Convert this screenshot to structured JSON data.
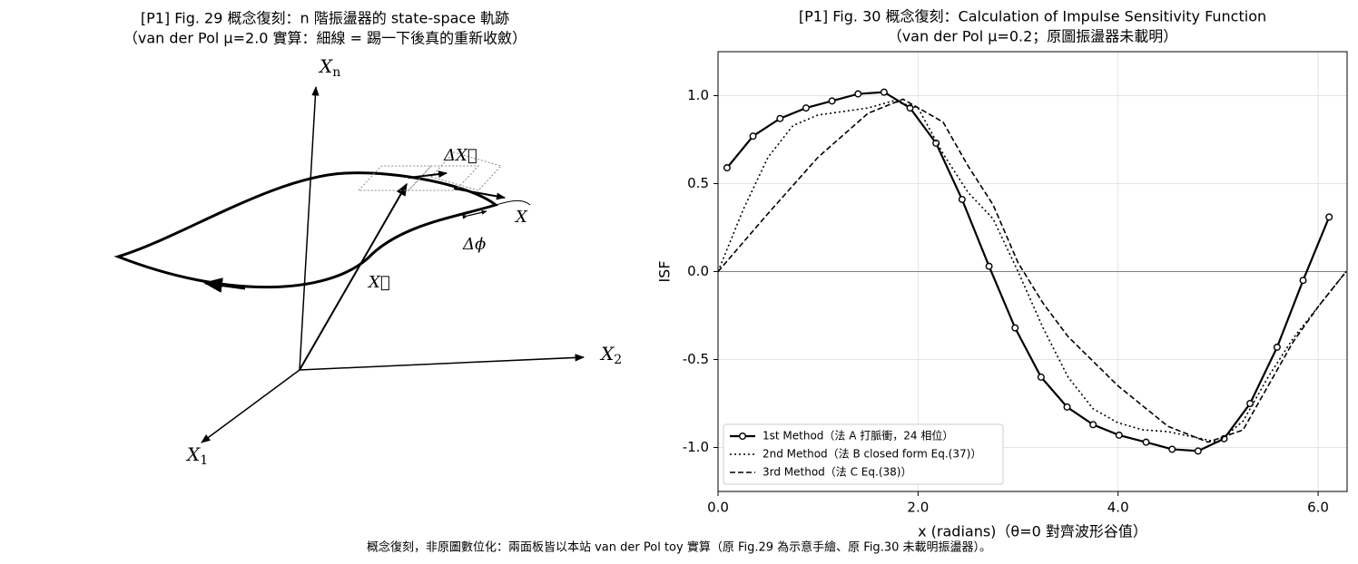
{
  "chart_data": [
    {
      "type": "diagram",
      "title": "[P1] Fig. 29 概念復刻：n 階振盪器的 state-space 軌跡",
      "subtitle": "（van der Pol μ=2.0 實算：細線 = 踢一下後真的重新收斂）",
      "axis_labels": [
        {
          "text": "X",
          "sub": "n"
        },
        {
          "text": "X",
          "sub": "2"
        },
        {
          "text": "X",
          "sub": "1"
        }
      ],
      "annotations": [
        "ΔX⃗",
        "X",
        "Δϕ",
        "X⃗"
      ]
    },
    {
      "type": "line",
      "title": "[P1] Fig. 30 概念復刻：Calculation of Impulse Sensitivity Function",
      "subtitle": "（van der Pol μ=0.2；原圖振盪器未載明）",
      "xlabel": "x (radians)（θ=0 對齊波形谷值）",
      "ylabel": "ISF",
      "xlim": [
        0,
        6.29
      ],
      "ylim": [
        -1.25,
        1.25
      ],
      "xticks": [
        {
          "value": 0,
          "label": "0.0"
        },
        {
          "value": 2,
          "label": "2.0"
        },
        {
          "value": 4,
          "label": "4.0"
        },
        {
          "value": 6,
          "label": "6.0"
        }
      ],
      "yticks": [
        {
          "value": -1,
          "label": "-1.0"
        },
        {
          "value": -0.5,
          "label": "-0.5"
        },
        {
          "value": 0,
          "label": "0.0"
        },
        {
          "value": 0.5,
          "label": "0.5"
        },
        {
          "value": 1,
          "label": "1.0"
        }
      ],
      "grid": true,
      "axhline": 0,
      "legend": "lower left",
      "series": [
        {
          "name": "1st Method（法 A 打脈衝，24 相位）",
          "color": "#000000",
          "dash": "solid",
          "marker": "circle",
          "x": [
            0.09,
            0.35,
            0.62,
            0.88,
            1.14,
            1.4,
            1.66,
            1.92,
            2.18,
            2.44,
            2.71,
            2.97,
            3.23,
            3.49,
            3.75,
            4.01,
            4.28,
            4.54,
            4.8,
            5.06,
            5.32,
            5.59,
            5.85,
            6.11
          ],
          "values": [
            0.59,
            0.77,
            0.87,
            0.93,
            0.97,
            1.01,
            1.02,
            0.93,
            0.73,
            0.41,
            0.03,
            -0.32,
            -0.6,
            -0.77,
            -0.87,
            -0.93,
            -0.97,
            -1.01,
            -1.02,
            -0.95,
            -0.75,
            -0.43,
            -0.05,
            0.31
          ]
        },
        {
          "name": "2nd Method（法 B closed form Eq.(37)）",
          "color": "#000000",
          "dash": "dotted",
          "x": [
            0,
            0.25,
            0.5,
            0.75,
            1.0,
            1.25,
            1.5,
            1.75,
            2.0,
            2.25,
            2.5,
            2.75,
            3.0,
            3.25,
            3.5,
            3.75,
            4.0,
            4.25,
            4.5,
            4.75,
            5.0,
            5.25,
            5.5,
            5.75,
            6.0,
            6.28
          ],
          "values": [
            0,
            0.35,
            0.65,
            0.83,
            0.89,
            0.91,
            0.93,
            0.97,
            0.93,
            0.67,
            0.45,
            0.3,
            0.0,
            -0.32,
            -0.6,
            -0.78,
            -0.86,
            -0.9,
            -0.91,
            -0.94,
            -0.97,
            -0.85,
            -0.6,
            -0.38,
            -0.2,
            0.0
          ]
        },
        {
          "name": "3rd Method（法 C Eq.(38)）",
          "color": "#000000",
          "dash": "dashed",
          "x": [
            0,
            0.5,
            1.0,
            1.5,
            1.85,
            2.25,
            2.5,
            2.75,
            3.0,
            3.25,
            3.5,
            4.0,
            4.5,
            4.9,
            5.25,
            5.5,
            5.75,
            6.0,
            6.28
          ],
          "values": [
            0,
            0.33,
            0.65,
            0.9,
            0.98,
            0.85,
            0.6,
            0.38,
            0.05,
            -0.18,
            -0.37,
            -0.65,
            -0.88,
            -0.97,
            -0.9,
            -0.65,
            -0.4,
            -0.2,
            0.0
          ]
        }
      ]
    }
  ],
  "footer": "概念復刻，非原圖數位化：兩面板皆以本站 van der Pol toy 實算（原 Fig.29 為示意手繪、原 Fig.30 未載明振盪器）。"
}
